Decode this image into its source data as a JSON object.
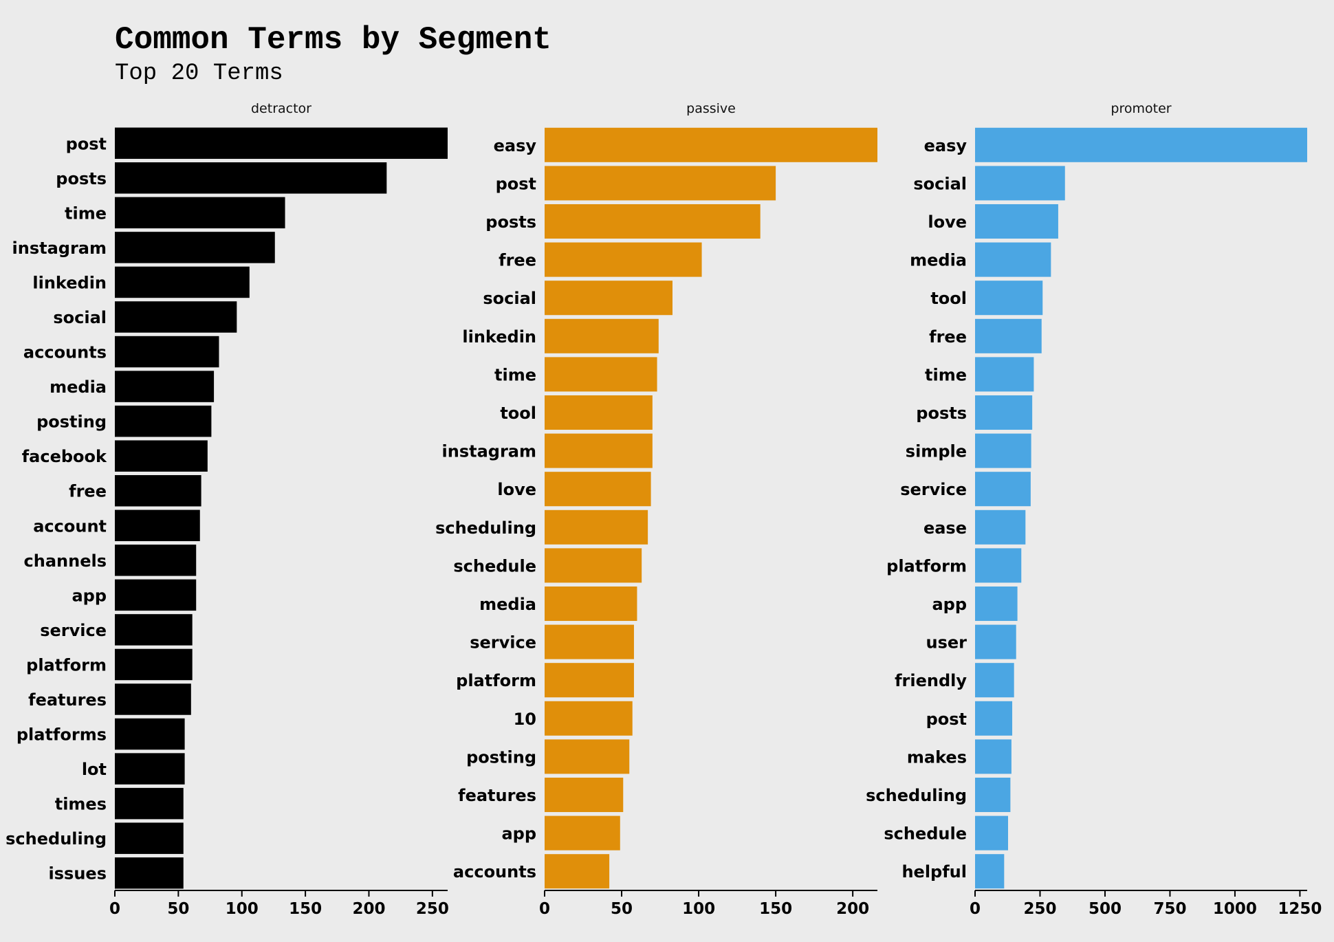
{
  "chart_data": {
    "title": "Common Terms by Segment",
    "subtitle": "Top 20 Terms",
    "type": "bar",
    "orientation": "horizontal",
    "grid": false,
    "panels": [
      {
        "name": "detractor",
        "color": "#000000",
        "xlim": [
          0,
          262
        ],
        "ticks": [
          0,
          50,
          100,
          150,
          200,
          250
        ],
        "categories": [
          "post",
          "posts",
          "time",
          "instagram",
          "linkedin",
          "social",
          "accounts",
          "media",
          "posting",
          "facebook",
          "free",
          "account",
          "channels",
          "app",
          "service",
          "platform",
          "features",
          "platforms",
          "lot",
          "times",
          "scheduling",
          "issues"
        ],
        "values": [
          262,
          214,
          134,
          126,
          106,
          96,
          82,
          78,
          76,
          73,
          68,
          67,
          64,
          64,
          61,
          61,
          60,
          55,
          55,
          54,
          54,
          54
        ]
      },
      {
        "name": "passive",
        "color": "#e08f0a",
        "xlim": [
          0,
          216
        ],
        "ticks": [
          0,
          50,
          100,
          150,
          200
        ],
        "categories": [
          "easy",
          "post",
          "posts",
          "free",
          "social",
          "linkedin",
          "time",
          "tool",
          "instagram",
          "love",
          "scheduling",
          "schedule",
          "media",
          "service",
          "platform",
          "10",
          "posting",
          "features",
          "app",
          "accounts"
        ],
        "values": [
          216,
          150,
          140,
          102,
          83,
          74,
          73,
          70,
          70,
          69,
          67,
          63,
          60,
          58,
          58,
          57,
          55,
          51,
          49,
          42
        ]
      },
      {
        "name": "promoter",
        "color": "#4ba6e3",
        "xlim": [
          0,
          1278
        ],
        "ticks": [
          0,
          250,
          500,
          750,
          1000,
          1250
        ],
        "categories": [
          "easy",
          "social",
          "love",
          "media",
          "tool",
          "free",
          "time",
          "posts",
          "simple",
          "service",
          "ease",
          "platform",
          "app",
          "user",
          "friendly",
          "post",
          "makes",
          "scheduling",
          "schedule",
          "helpful"
        ],
        "values": [
          1278,
          346,
          320,
          292,
          260,
          256,
          226,
          220,
          216,
          214,
          194,
          178,
          163,
          158,
          150,
          143,
          140,
          136,
          127,
          112
        ]
      }
    ]
  }
}
